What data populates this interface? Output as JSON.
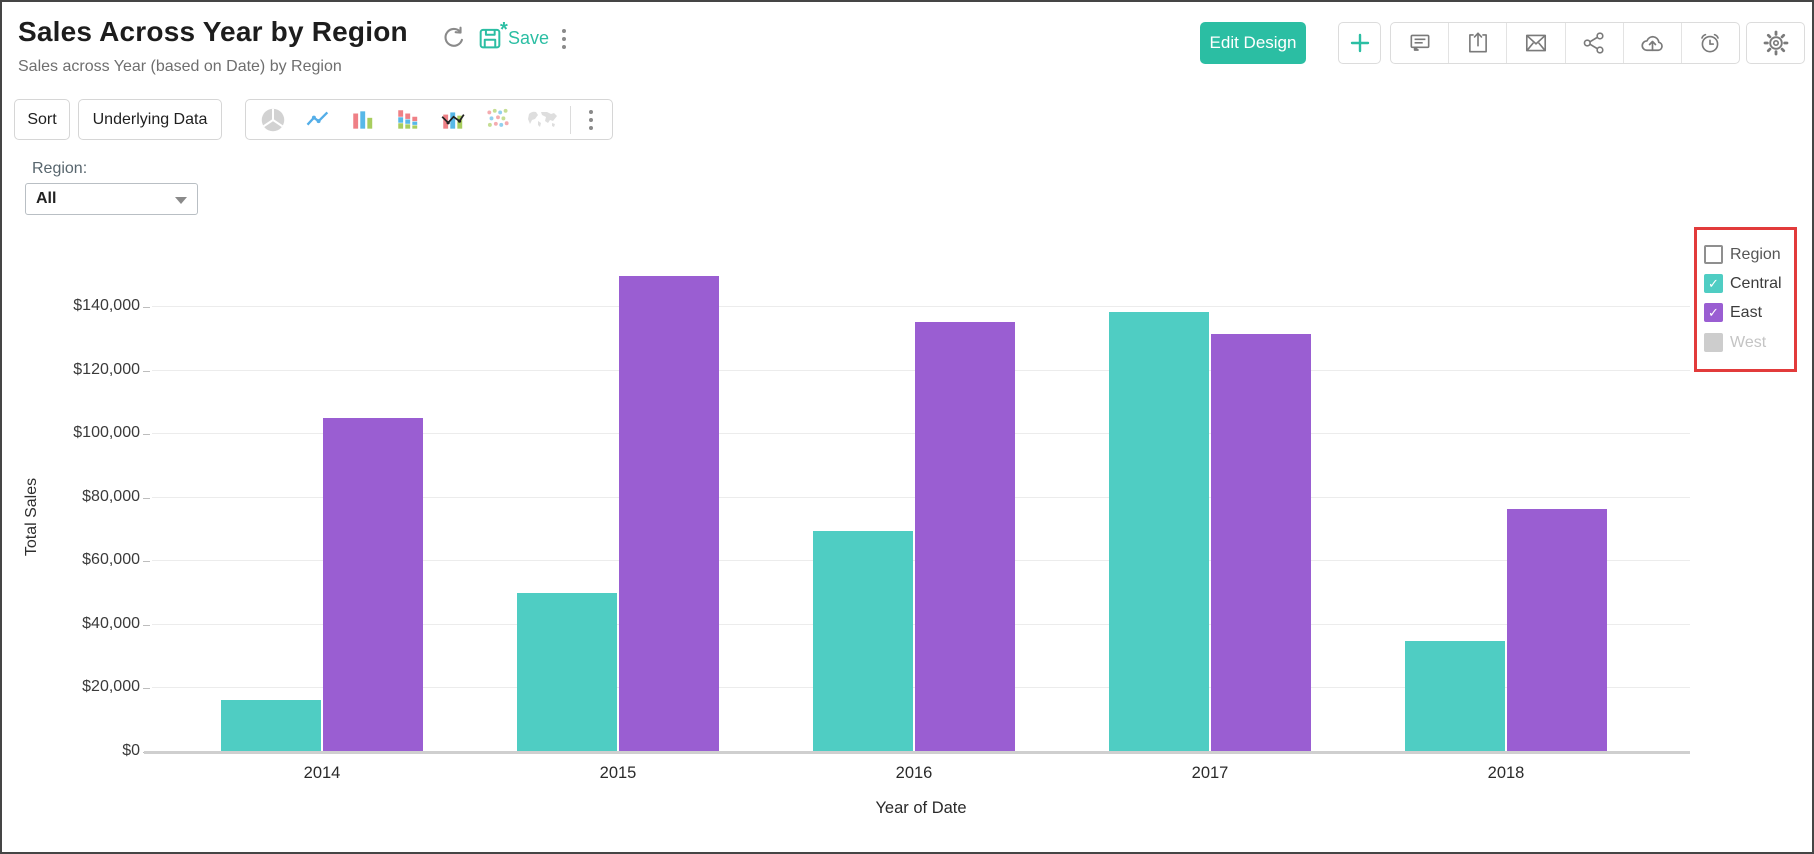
{
  "header": {
    "title": "Sales Across Year by Region",
    "subtitle": "Sales across Year (based on Date) by Region",
    "save_label": "Save",
    "edit_design_label": "Edit Design",
    "action_icons": [
      "refresh-icon",
      "save-icon",
      "more-menu-icon",
      "plus-icon",
      "comment-icon",
      "export-icon",
      "email-icon",
      "share-icon",
      "cloud-upload-icon",
      "schedule-icon",
      "settings-icon"
    ]
  },
  "toolbar": {
    "sort_label": "Sort",
    "underlying_data_label": "Underlying Data",
    "chart_type_icons": [
      "pie-chart-icon",
      "line-chart-icon",
      "bar-chart-icon",
      "stacked-bar-icon",
      "bar-line-combo-icon",
      "scatter-chart-icon",
      "map-chart-icon",
      "more-chart-types-icon"
    ]
  },
  "filter": {
    "label": "Region:",
    "value": "All"
  },
  "legend": {
    "title": "Region",
    "items": [
      {
        "label": "Central",
        "color": "#4FCDC3",
        "checked": true,
        "disabled": false
      },
      {
        "label": "East",
        "color": "#9A5ED2",
        "checked": true,
        "disabled": false
      },
      {
        "label": "West",
        "color": "#CDCDCD",
        "checked": false,
        "disabled": true
      }
    ],
    "highlight_color": "#E23B3B"
  },
  "chart_data": {
    "type": "bar",
    "title": "Sales Across Year by Region",
    "categories": [
      "2014",
      "2015",
      "2016",
      "2017",
      "2018"
    ],
    "series": [
      {
        "name": "Central",
        "color": "#4FCDC3",
        "values": [
          16300,
          50000,
          69500,
          138500,
          35000
        ]
      },
      {
        "name": "East",
        "color": "#9A5ED2",
        "values": [
          105000,
          150000,
          135500,
          131500,
          76500
        ]
      }
    ],
    "xlabel": "Year of Date",
    "ylabel": "Total Sales",
    "ylim": [
      0,
      164000
    ],
    "yticks": [
      0,
      20000,
      40000,
      60000,
      80000,
      100000,
      120000,
      140000
    ],
    "ytick_labels": [
      "$0",
      "$20,000",
      "$40,000",
      "$60,000",
      "$80,000",
      "$100,000",
      "$120,000",
      "$140,000"
    ],
    "grid": true,
    "legend_position": "right"
  },
  "colors": {
    "accent_teal": "#2BBEA3",
    "bar_central": "#4FCDC3",
    "bar_east": "#9A5ED2",
    "annotation_red": "#E23B3B",
    "icon_gray": "#7a7a7a"
  }
}
